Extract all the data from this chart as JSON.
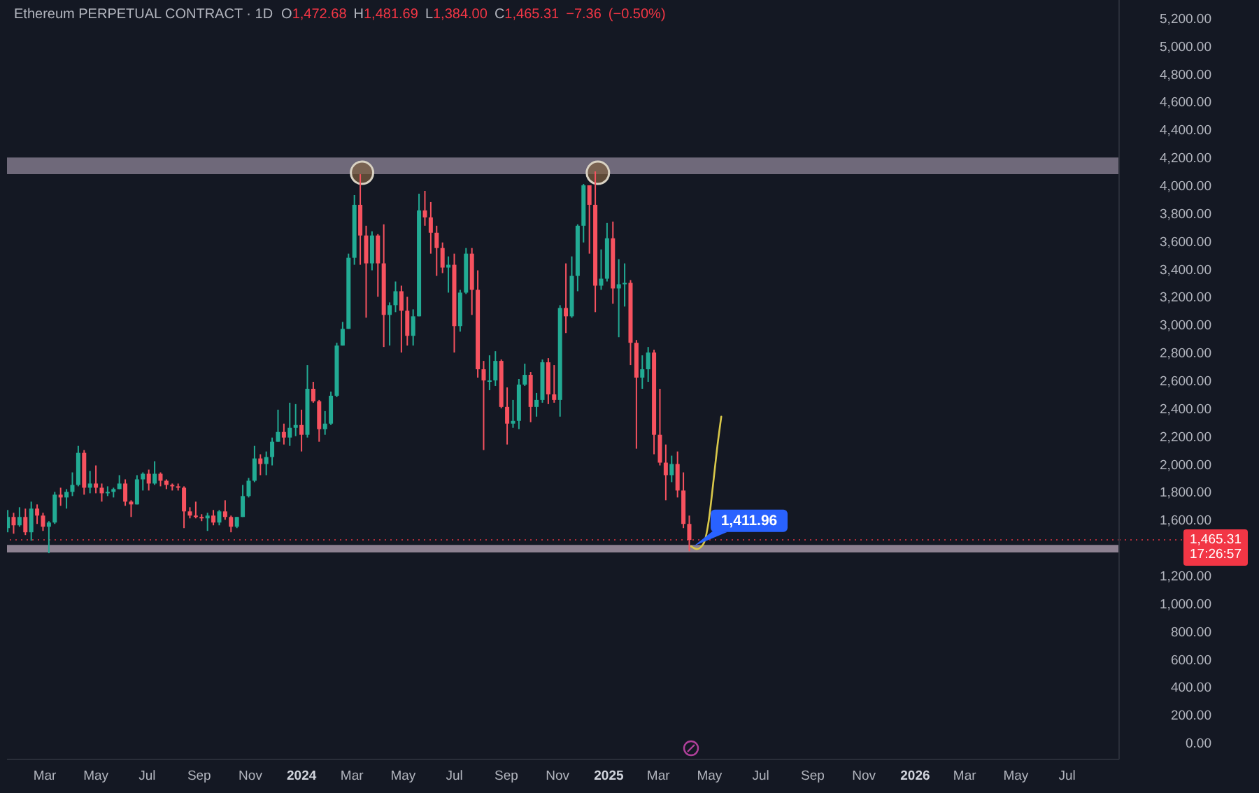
{
  "chart_data": {
    "type": "candlestick",
    "title": "Ethereum PERPETUAL CONTRACT · 1D",
    "subtitle": "O1,472.68 H1,481.69 L1,384.00 C1,465.31 −7.36 (−0.50%)",
    "x": [
      "2023-01-16",
      "2023-01-23",
      "2023-01-30",
      "2023-02-06",
      "2023-02-13",
      "2023-02-20",
      "2023-02-27",
      "2023-03-06",
      "2023-03-13",
      "2023-03-20",
      "2023-03-27",
      "2023-04-03",
      "2023-04-10",
      "2023-04-17",
      "2023-04-24",
      "2023-05-01",
      "2023-05-08",
      "2023-05-15",
      "2023-05-22",
      "2023-05-29",
      "2023-06-05",
      "2023-06-12",
      "2023-06-19",
      "2023-06-26",
      "2023-07-03",
      "2023-07-10",
      "2023-07-17",
      "2023-07-24",
      "2023-07-31",
      "2023-08-07",
      "2023-08-14",
      "2023-08-21",
      "2023-08-28",
      "2023-09-04",
      "2023-09-11",
      "2023-09-18",
      "2023-09-25",
      "2023-10-02",
      "2023-10-09",
      "2023-10-16",
      "2023-10-23",
      "2023-10-30",
      "2023-11-06",
      "2023-11-13",
      "2023-11-20",
      "2023-11-27",
      "2023-12-04",
      "2023-12-11",
      "2023-12-18",
      "2023-12-25",
      "2024-01-01",
      "2024-01-08",
      "2024-01-15",
      "2024-01-22",
      "2024-01-29",
      "2024-02-05",
      "2024-02-12",
      "2024-02-19",
      "2024-02-26",
      "2024-03-04",
      "2024-03-11",
      "2024-03-18",
      "2024-03-25",
      "2024-04-01",
      "2024-04-08",
      "2024-04-15",
      "2024-04-22",
      "2024-04-29",
      "2024-05-06",
      "2024-05-13",
      "2024-05-20",
      "2024-05-27",
      "2024-06-03",
      "2024-06-10",
      "2024-06-17",
      "2024-06-24",
      "2024-07-01",
      "2024-07-08",
      "2024-07-15",
      "2024-07-22",
      "2024-07-29",
      "2024-08-05",
      "2024-08-12",
      "2024-08-19",
      "2024-08-26",
      "2024-09-02",
      "2024-09-09",
      "2024-09-16",
      "2024-09-23",
      "2024-09-30",
      "2024-10-07",
      "2024-10-14",
      "2024-10-21",
      "2024-10-28",
      "2024-11-04",
      "2024-11-11",
      "2024-11-18",
      "2024-11-25",
      "2024-12-02",
      "2024-12-09",
      "2024-12-16",
      "2024-12-23",
      "2024-12-30",
      "2025-01-06",
      "2025-01-13",
      "2025-01-20",
      "2025-01-27",
      "2025-02-03",
      "2025-02-10",
      "2025-02-17",
      "2025-02-24",
      "2025-03-03",
      "2025-03-10",
      "2025-03-17",
      "2025-03-24",
      "2025-03-31",
      "2025-04-07"
    ],
    "ohlc": [
      [
        1550,
        1680,
        1520,
        1630
      ],
      [
        1630,
        1660,
        1510,
        1570
      ],
      [
        1570,
        1700,
        1560,
        1630
      ],
      [
        1630,
        1690,
        1500,
        1520
      ],
      [
        1520,
        1740,
        1460,
        1690
      ],
      [
        1690,
        1720,
        1580,
        1640
      ],
      [
        1640,
        1660,
        1530,
        1560
      ],
      [
        1560,
        1600,
        1370,
        1590
      ],
      [
        1590,
        1810,
        1580,
        1790
      ],
      [
        1790,
        1840,
        1710,
        1770
      ],
      [
        1770,
        1830,
        1690,
        1810
      ],
      [
        1810,
        1950,
        1780,
        1860
      ],
      [
        1860,
        2140,
        1850,
        2090
      ],
      [
        2090,
        2110,
        1790,
        1840
      ],
      [
        1840,
        1960,
        1800,
        1870
      ],
      [
        1870,
        2000,
        1800,
        1840
      ],
      [
        1840,
        1870,
        1740,
        1800
      ],
      [
        1800,
        1850,
        1780,
        1810
      ],
      [
        1810,
        1840,
        1770,
        1830
      ],
      [
        1830,
        1930,
        1830,
        1870
      ],
      [
        1870,
        1900,
        1710,
        1740
      ],
      [
        1740,
        1750,
        1630,
        1720
      ],
      [
        1720,
        1930,
        1720,
        1900
      ],
      [
        1900,
        1950,
        1820,
        1940
      ],
      [
        1940,
        1970,
        1820,
        1870
      ],
      [
        1870,
        2030,
        1860,
        1940
      ],
      [
        1940,
        1950,
        1850,
        1890
      ],
      [
        1890,
        1900,
        1830,
        1860
      ],
      [
        1860,
        1870,
        1820,
        1850
      ],
      [
        1850,
        1870,
        1820,
        1840
      ],
      [
        1840,
        1850,
        1550,
        1670
      ],
      [
        1670,
        1700,
        1620,
        1640
      ],
      [
        1640,
        1740,
        1620,
        1630
      ],
      [
        1630,
        1650,
        1600,
        1620
      ],
      [
        1620,
        1660,
        1530,
        1640
      ],
      [
        1640,
        1680,
        1570,
        1590
      ],
      [
        1590,
        1680,
        1570,
        1670
      ],
      [
        1670,
        1750,
        1610,
        1630
      ],
      [
        1630,
        1640,
        1520,
        1560
      ],
      [
        1560,
        1630,
        1550,
        1630
      ],
      [
        1630,
        1860,
        1630,
        1780
      ],
      [
        1780,
        1910,
        1770,
        1890
      ],
      [
        1890,
        2140,
        1880,
        2050
      ],
      [
        2050,
        2080,
        1930,
        2010
      ],
      [
        2010,
        2100,
        1930,
        2060
      ],
      [
        2060,
        2200,
        2000,
        2170
      ],
      [
        2170,
        2400,
        2170,
        2240
      ],
      [
        2240,
        2300,
        2150,
        2200
      ],
      [
        2200,
        2450,
        2140,
        2270
      ],
      [
        2270,
        2440,
        2210,
        2290
      ],
      [
        2290,
        2400,
        2100,
        2220
      ],
      [
        2220,
        2720,
        2200,
        2550
      ],
      [
        2550,
        2600,
        2450,
        2460
      ],
      [
        2460,
        2470,
        2170,
        2260
      ],
      [
        2260,
        2390,
        2220,
        2300
      ],
      [
        2300,
        2530,
        2290,
        2500
      ],
      [
        2500,
        2880,
        2490,
        2860
      ],
      [
        2860,
        3030,
        2860,
        2980
      ],
      [
        2980,
        3520,
        2980,
        3490
      ],
      [
        3490,
        3940,
        3440,
        3870
      ],
      [
        3870,
        4090,
        3440,
        3650
      ],
      [
        3650,
        3720,
        3060,
        3450
      ],
      [
        3450,
        3680,
        3400,
        3650
      ],
      [
        3650,
        3660,
        3210,
        3450
      ],
      [
        3450,
        3730,
        2850,
        3080
      ],
      [
        3080,
        3170,
        2860,
        3150
      ],
      [
        3150,
        3320,
        3100,
        3250
      ],
      [
        3250,
        3290,
        2810,
        3110
      ],
      [
        3110,
        3210,
        2860,
        2930
      ],
      [
        2930,
        3120,
        2860,
        3070
      ],
      [
        3070,
        3950,
        3070,
        3830
      ],
      [
        3830,
        3970,
        3720,
        3780
      ],
      [
        3780,
        3890,
        3520,
        3670
      ],
      [
        3670,
        3720,
        3360,
        3560
      ],
      [
        3560,
        3600,
        3380,
        3420
      ],
      [
        3420,
        3500,
        3240,
        3440
      ],
      [
        3440,
        3520,
        2810,
        3000
      ],
      [
        3000,
        3260,
        2960,
        3240
      ],
      [
        3240,
        3560,
        3230,
        3520
      ],
      [
        3520,
        3560,
        3080,
        3260
      ],
      [
        3260,
        3400,
        2630,
        2690
      ],
      [
        2690,
        2750,
        2110,
        2610
      ],
      [
        2610,
        2790,
        2540,
        2610
      ],
      [
        2610,
        2820,
        2570,
        2750
      ],
      [
        2750,
        2760,
        2410,
        2420
      ],
      [
        2420,
        2560,
        2150,
        2300
      ],
      [
        2300,
        2470,
        2270,
        2320
      ],
      [
        2320,
        2620,
        2260,
        2580
      ],
      [
        2580,
        2730,
        2570,
        2650
      ],
      [
        2650,
        2670,
        2310,
        2420
      ],
      [
        2420,
        2520,
        2350,
        2470
      ],
      [
        2470,
        2760,
        2450,
        2740
      ],
      [
        2740,
        2770,
        2440,
        2510
      ],
      [
        2510,
        2720,
        2450,
        2470
      ],
      [
        2470,
        3150,
        2350,
        3130
      ],
      [
        3130,
        3450,
        2950,
        3070
      ],
      [
        3070,
        3500,
        3060,
        3360
      ],
      [
        3360,
        3730,
        3250,
        3720
      ],
      [
        3720,
        4020,
        3600,
        4010
      ],
      [
        4010,
        4010,
        3520,
        3870
      ],
      [
        3870,
        4110,
        3100,
        3290
      ],
      [
        3290,
        3550,
        3260,
        3340
      ],
      [
        3340,
        3740,
        3320,
        3630
      ],
      [
        3630,
        3750,
        3160,
        3270
      ],
      [
        3270,
        3480,
        2920,
        3300
      ],
      [
        3300,
        3450,
        3140,
        3310
      ],
      [
        3310,
        3330,
        2720,
        2880
      ],
      [
        2880,
        2900,
        2120,
        2630
      ],
      [
        2630,
        2790,
        2550,
        2690
      ],
      [
        2690,
        2850,
        2600,
        2810
      ],
      [
        2810,
        2830,
        2080,
        2220
      ],
      [
        2220,
        2550,
        2000,
        2020
      ],
      [
        2020,
        2150,
        1750,
        1930
      ],
      [
        1930,
        2070,
        1880,
        2010
      ],
      [
        2010,
        2100,
        1770,
        1820
      ],
      [
        1820,
        1950,
        1550,
        1580
      ],
      [
        1580,
        1640,
        1384,
        1465.31
      ]
    ],
    "colors": [
      "#22ab94",
      "#f7525f",
      "#22ab94",
      "#f7525f",
      "#22ab94",
      "#f7525f",
      "#f7525f",
      "#22ab94",
      "#22ab94",
      "#f7525f",
      "#22ab94",
      "#22ab94",
      "#22ab94",
      "#f7525f",
      "#22ab94",
      "#f7525f",
      "#f7525f",
      "#22ab94",
      "#22ab94",
      "#22ab94",
      "#f7525f",
      "#f7525f",
      "#22ab94",
      "#22ab94",
      "#f7525f",
      "#22ab94",
      "#f7525f",
      "#f7525f",
      "#f7525f",
      "#f7525f",
      "#f7525f",
      "#f7525f",
      "#f7525f",
      "#f7525f",
      "#22ab94",
      "#f7525f",
      "#22ab94",
      "#f7525f",
      "#f7525f",
      "#22ab94",
      "#22ab94",
      "#22ab94",
      "#22ab94",
      "#f7525f",
      "#22ab94",
      "#22ab94",
      "#22ab94",
      "#f7525f",
      "#22ab94",
      "#22ab94",
      "#f7525f",
      "#22ab94",
      "#f7525f",
      "#f7525f",
      "#22ab94",
      "#22ab94",
      "#22ab94",
      "#22ab94",
      "#22ab94",
      "#22ab94",
      "#f7525f",
      "#f7525f",
      "#22ab94",
      "#f7525f",
      "#f7525f",
      "#22ab94",
      "#22ab94",
      "#f7525f",
      "#f7525f",
      "#22ab94",
      "#22ab94",
      "#f7525f",
      "#f7525f",
      "#f7525f",
      "#f7525f",
      "#22ab94",
      "#f7525f",
      "#22ab94",
      "#22ab94",
      "#f7525f",
      "#f7525f",
      "#f7525f",
      "#22ab94",
      "#22ab94",
      "#f7525f",
      "#f7525f",
      "#22ab94",
      "#22ab94",
      "#22ab94",
      "#f7525f",
      "#22ab94",
      "#22ab94",
      "#f7525f",
      "#f7525f",
      "#22ab94",
      "#f7525f",
      "#22ab94",
      "#22ab94",
      "#22ab94",
      "#f7525f",
      "#f7525f",
      "#22ab94",
      "#22ab94",
      "#f7525f",
      "#22ab94",
      "#22ab94",
      "#f7525f",
      "#f7525f",
      "#22ab94",
      "#22ab94",
      "#f7525f",
      "#f7525f",
      "#f7525f",
      "#22ab94",
      "#f7525f",
      "#f7525f",
      "#f7525f"
    ],
    "series": [
      {
        "type": "scatter",
        "x": [
          "2024-03-13",
          "2024-12-19"
        ],
        "values": [
          4100,
          4100
        ],
        "color": "#7d6040",
        "marker": "circle"
      },
      {
        "type": "line",
        "x": [
          "2025-04-09",
          "2025-04-16",
          "2025-04-24",
          "2025-04-30",
          "2025-05-05",
          "2025-05-10",
          "2025-05-15"
        ],
        "values": [
          1420,
          1400,
          1440,
          1600,
          1850,
          2120,
          2350
        ],
        "color": "#d9c84a"
      }
    ],
    "xlim": [
      "2023-01-15",
      "2026-09-01"
    ],
    "xticks": [
      {
        "value": "2023-03",
        "label": "Mar"
      },
      {
        "value": "2023-05",
        "label": "May"
      },
      {
        "value": "2023-07",
        "label": "Jul"
      },
      {
        "value": "2023-09",
        "label": "Sep"
      },
      {
        "value": "2023-11",
        "label": "Nov"
      },
      {
        "value": "2024-01",
        "label": "2024"
      },
      {
        "value": "2024-03",
        "label": "Mar"
      },
      {
        "value": "2024-05",
        "label": "May"
      },
      {
        "value": "2024-07",
        "label": "Jul"
      },
      {
        "value": "2024-09",
        "label": "Sep"
      },
      {
        "value": "2024-11",
        "label": "Nov"
      },
      {
        "value": "2025-01",
        "label": "2025"
      },
      {
        "value": "2025-03",
        "label": "Mar"
      },
      {
        "value": "2025-05",
        "label": "May"
      },
      {
        "value": "2025-07",
        "label": "Jul"
      },
      {
        "value": "2025-09",
        "label": "Sep"
      },
      {
        "value": "2025-11",
        "label": "Nov"
      },
      {
        "value": "2026-01",
        "label": "2026"
      },
      {
        "value": "2026-03",
        "label": "Mar"
      },
      {
        "value": "2026-05",
        "label": "May"
      },
      {
        "value": "2026-07",
        "label": "Jul"
      }
    ],
    "ylim": [
      -110,
      5340
    ],
    "yticks": [
      {
        "value": 0,
        "label": "0.00"
      },
      {
        "value": 200,
        "label": "200.00"
      },
      {
        "value": 400,
        "label": "400.00"
      },
      {
        "value": 600,
        "label": "600.00"
      },
      {
        "value": 800,
        "label": "800.00"
      },
      {
        "value": 1000,
        "label": "1,000.00"
      },
      {
        "value": 1200,
        "label": "1,200.00"
      },
      {
        "value": 1600,
        "label": "1,600.00"
      },
      {
        "value": 1800,
        "label": "1,800.00"
      },
      {
        "value": 2000,
        "label": "2,000.00"
      },
      {
        "value": 2200,
        "label": "2,200.00"
      },
      {
        "value": 2400,
        "label": "2,400.00"
      },
      {
        "value": 2600,
        "label": "2,600.00"
      },
      {
        "value": 2800,
        "label": "2,800.00"
      },
      {
        "value": 3000,
        "label": "3,000.00"
      },
      {
        "value": 3200,
        "label": "3,200.00"
      },
      {
        "value": 3400,
        "label": "3,400.00"
      },
      {
        "value": 3600,
        "label": "3,600.00"
      },
      {
        "value": 3800,
        "label": "3,800.00"
      },
      {
        "value": 4000,
        "label": "4,000.00"
      },
      {
        "value": 4200,
        "label": "4,200.00"
      },
      {
        "value": 4400,
        "label": "4,400.00"
      },
      {
        "value": 4600,
        "label": "4,600.00"
      },
      {
        "value": 4800,
        "label": "4,800.00"
      },
      {
        "value": 5000,
        "label": "5,000.00"
      },
      {
        "value": 5200,
        "label": "5,200.00"
      }
    ],
    "ref_lines": [
      {
        "axis": "y",
        "value": 1465.31,
        "label": "1,465.31",
        "color": "#f23645",
        "line_style": "dotted"
      }
    ],
    "bands": [
      {
        "axis": "y",
        "from": 4090,
        "to": 4210,
        "color": "#7f7889"
      },
      {
        "axis": "y",
        "from": 1375,
        "to": 1430,
        "color": "#a294a4"
      }
    ],
    "annotations": [
      {
        "text": "1,411.96",
        "x": "2025-04-09",
        "y": 1411.96
      },
      "17:26:57"
    ]
  }
}
